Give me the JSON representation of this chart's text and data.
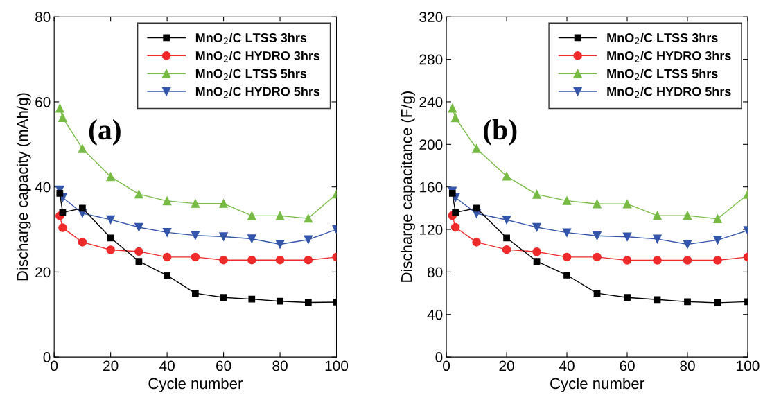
{
  "chart_data": [
    {
      "type": "line",
      "xlabel": "Cycle number",
      "ylabel": "Discharge capacity (mAh/g)",
      "annotations": [
        "(a)"
      ],
      "x": [
        2,
        3,
        10,
        20,
        30,
        40,
        50,
        60,
        70,
        80,
        90,
        100
      ],
      "xlim": [
        0,
        100
      ],
      "xticks": [
        0,
        20,
        40,
        60,
        80,
        100
      ],
      "ylim": [
        0,
        80
      ],
      "yticks": [
        0,
        20,
        40,
        60,
        80
      ],
      "legend": "top right",
      "grid": false,
      "series": [
        {
          "name": "MnO$_{2}$/C LTSS 3hrs",
          "color": "#000000",
          "marker": "square",
          "values": [
            38.5,
            34,
            35,
            28,
            22.5,
            19.2,
            15,
            14,
            13.6,
            13.1,
            12.8,
            12.9
          ]
        },
        {
          "name": "MnO$_{2}$/C HYDRO 3hrs",
          "color": "#ee2a2a",
          "marker": "circle",
          "values": [
            33.2,
            30.4,
            27,
            25.2,
            24.8,
            23.5,
            23.5,
            22.8,
            22.8,
            22.8,
            22.8,
            23.5
          ]
        },
        {
          "name": "MnO$_{2}$/C LTSS 5hrs",
          "color": "#77bb44",
          "marker": "triangle",
          "values": [
            58.5,
            56.3,
            49,
            42.4,
            38.3,
            36.7,
            36.1,
            36.1,
            33.2,
            33.2,
            32.6,
            38.3
          ]
        },
        {
          "name": "MnO$_{2}$/C HYDRO 5hrs",
          "color": "#3355aa",
          "marker": "triangle_down",
          "values": [
            39.3,
            37.5,
            33.8,
            32.3,
            30.5,
            29.3,
            28.6,
            28.3,
            27.8,
            26.5,
            27.6,
            30
          ]
        }
      ]
    },
    {
      "type": "line",
      "xlabel": "Cycle number",
      "ylabel": "Discharge capacitance (F/g)",
      "annotations": [
        "(b)"
      ],
      "x": [
        2,
        3,
        10,
        20,
        30,
        40,
        50,
        60,
        70,
        80,
        90,
        100
      ],
      "xlim": [
        0,
        100
      ],
      "xticks": [
        0,
        20,
        40,
        60,
        80,
        100
      ],
      "ylim": [
        0,
        320
      ],
      "yticks": [
        0,
        40,
        80,
        120,
        160,
        200,
        240,
        280,
        320
      ],
      "legend": "top right",
      "grid": false,
      "series": [
        {
          "name": "MnO$_{2}$/C LTSS 3hrs",
          "color": "#000000",
          "marker": "square",
          "values": [
            154,
            136,
            140,
            112,
            90,
            77,
            60,
            56,
            54,
            52,
            51,
            52
          ]
        },
        {
          "name": "MnO$_{2}$/C HYDRO 3hrs",
          "color": "#ee2a2a",
          "marker": "circle",
          "values": [
            133,
            122,
            108,
            101,
            99,
            94,
            94,
            91,
            91,
            91,
            91,
            94
          ]
        },
        {
          "name": "MnO$_{2}$/C LTSS 5hrs",
          "color": "#77bb44",
          "marker": "triangle",
          "values": [
            234,
            225,
            196,
            170,
            153,
            147,
            144,
            144,
            133,
            133,
            130,
            153
          ]
        },
        {
          "name": "MnO$_{2}$/C HYDRO 5hrs",
          "color": "#3355aa",
          "marker": "triangle_down",
          "values": [
            156,
            150,
            135,
            129,
            122,
            117,
            114,
            113,
            111,
            106,
            110,
            119
          ]
        }
      ]
    }
  ]
}
